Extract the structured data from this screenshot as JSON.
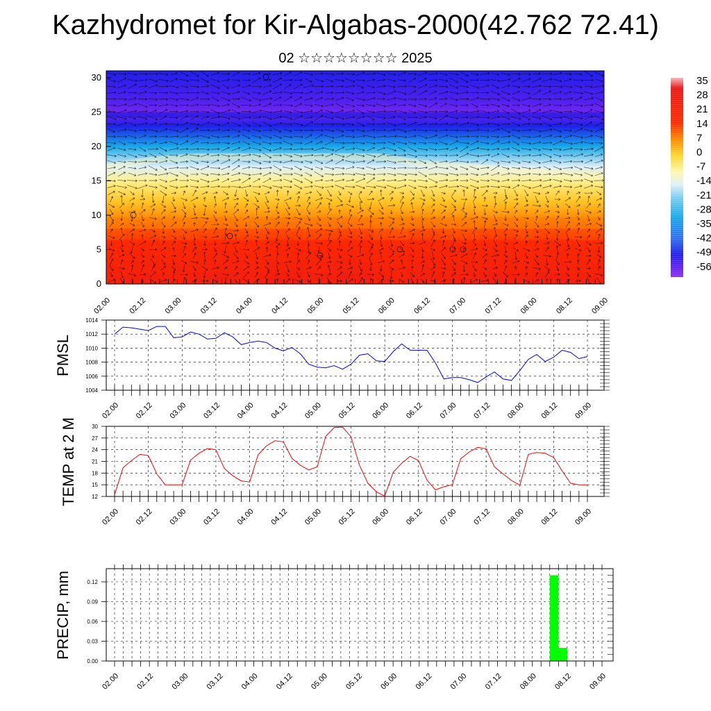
{
  "title": "Kazhydromet for Kir-Algabas-2000(42.762 72.41)",
  "subtitle": "02 ☆☆☆☆☆☆☆☆ 2025",
  "time_ticks": [
    "02.00",
    "02.12",
    "03.00",
    "03.12",
    "04.00",
    "04.12",
    "05.00",
    "05.12",
    "06.00",
    "06.12",
    "07.00",
    "07.12",
    "08.00",
    "08.12",
    "09.00"
  ],
  "chart_data": [
    {
      "type": "heatmap",
      "name": "temperature-height-section",
      "ylim": [
        0,
        31
      ],
      "y_ticks": [
        0,
        5,
        10,
        15,
        20,
        25,
        30
      ],
      "colorbar": {
        "labels": [
          "35",
          "28",
          "21",
          "14",
          "7",
          "0",
          "-7",
          "-14",
          "-21",
          "-28",
          "-35",
          "-42",
          "-49",
          "-56"
        ],
        "range": [
          -59,
          38
        ],
        "stops": [
          {
            "v": 38,
            "c": "#f5b8b8"
          },
          {
            "v": 33,
            "c": "#e81818"
          },
          {
            "v": 16,
            "c": "#ff2a00"
          },
          {
            "v": 8,
            "c": "#ff8a00"
          },
          {
            "v": 0,
            "c": "#ffd830"
          },
          {
            "v": -8,
            "c": "#fff8b0"
          },
          {
            "v": -14,
            "c": "#dff0f8"
          },
          {
            "v": -20,
            "c": "#7fd0f0"
          },
          {
            "v": -30,
            "c": "#18a8e8"
          },
          {
            "v": -40,
            "c": "#3070f0"
          },
          {
            "v": -48,
            "c": "#2020e8"
          },
          {
            "v": -54,
            "c": "#6020f0"
          },
          {
            "v": -59,
            "c": "#8a30f0"
          }
        ]
      },
      "profile": {
        "z": [
          0,
          3,
          6,
          9,
          12,
          15,
          17,
          20,
          23,
          25,
          27,
          31
        ],
        "t": [
          26,
          22,
          17,
          9,
          2,
          -6,
          -14,
          -30,
          -48,
          -56,
          -52,
          -48
        ]
      },
      "surface_temp": [
        12,
        20,
        23,
        15,
        15,
        21,
        24,
        18,
        16,
        26,
        26,
        19,
        19,
        30,
        27,
        15,
        12,
        22,
        21,
        14,
        15,
        23,
        24,
        15,
        23,
        23,
        15,
        15
      ],
      "ridge": [
        17,
        18,
        18.5,
        18.5,
        18.5,
        18.5,
        18.5,
        17.5,
        17,
        16.5,
        16,
        15.5
      ]
    },
    {
      "type": "line",
      "name": "PMSL",
      "ylabel": "PMSL",
      "ylim": [
        1004,
        1014
      ],
      "y_ticks": [
        1004,
        1006,
        1008,
        1010,
        1012,
        1014
      ],
      "color": "#0000ff",
      "x": [
        0,
        3,
        6,
        9,
        12,
        15,
        18,
        21,
        24,
        27,
        30,
        33,
        36,
        39,
        42,
        45,
        48,
        51,
        54,
        57,
        60,
        63,
        66,
        69,
        72,
        75,
        78,
        81,
        84,
        87,
        90,
        93,
        96,
        99,
        102,
        105,
        108,
        111,
        114,
        117,
        120,
        123,
        126,
        129,
        132,
        135,
        138,
        141,
        144,
        147,
        150,
        153,
        156,
        159,
        162,
        165,
        168
      ],
      "values": [
        1012.0,
        1013.0,
        1012.9,
        1012.7,
        1012.5,
        1013.1,
        1013.1,
        1011.5,
        1011.6,
        1012.3,
        1012.0,
        1011.3,
        1011.4,
        1012.2,
        1011.6,
        1010.5,
        1010.8,
        1011.0,
        1010.8,
        1010.0,
        1009.6,
        1010.1,
        1009.2,
        1007.7,
        1007.3,
        1007.2,
        1007.5,
        1007.0,
        1007.7,
        1009.0,
        1009.2,
        1008.2,
        1008.1,
        1009.5,
        1010.6,
        1009.7,
        1009.7,
        1009.7,
        1007.9,
        1005.6,
        1005.8,
        1005.8,
        1005.5,
        1005.1,
        1005.9,
        1006.6,
        1005.6,
        1005.4,
        1006.8,
        1008.4,
        1009.1,
        1008.1,
        1008.7,
        1009.7,
        1009.4,
        1008.5,
        1008.8
      ]
    },
    {
      "type": "line",
      "name": "TEMP at 2 M",
      "ylabel": "TEMP at 2 M",
      "ylim": [
        12,
        30
      ],
      "y_ticks": [
        12,
        15,
        18,
        21,
        24,
        27,
        30
      ],
      "color": "#ff0000",
      "x": [
        0,
        3,
        6,
        9,
        12,
        15,
        18,
        21,
        24,
        27,
        30,
        33,
        36,
        39,
        42,
        45,
        48,
        51,
        54,
        57,
        60,
        63,
        66,
        69,
        72,
        75,
        78,
        81,
        84,
        87,
        90,
        93,
        96,
        99,
        102,
        105,
        108,
        111,
        114,
        117,
        120,
        123,
        126,
        129,
        132,
        135,
        138,
        141,
        144,
        147,
        150,
        153,
        156,
        159,
        162,
        165,
        168
      ],
      "values": [
        12.4,
        19.4,
        21.2,
        22.8,
        22.5,
        17.8,
        15.0,
        15.0,
        15.0,
        21.3,
        23.1,
        24.3,
        24.0,
        19.2,
        17.3,
        16.0,
        15.7,
        22.7,
        25.0,
        26.3,
        26.0,
        21.8,
        20.0,
        18.8,
        19.6,
        27.4,
        29.7,
        29.8,
        27.3,
        20.0,
        15.4,
        13.2,
        12.1,
        18.2,
        20.5,
        22.3,
        21.2,
        16.2,
        13.7,
        14.5,
        15.0,
        21.7,
        23.4,
        24.6,
        24.2,
        19.6,
        17.8,
        16.1,
        14.9,
        22.8,
        23.3,
        23.1,
        22.0,
        18.6,
        15.4,
        15.0,
        15.0
      ]
    },
    {
      "type": "bar",
      "name": "PRECIP",
      "ylabel": "PRECIP, mm",
      "ylim": [
        0,
        0.14
      ],
      "y_ticks": [
        "0.00",
        "0.03",
        "0.06",
        "0.09",
        "0.12"
      ],
      "color": "#00ff00",
      "bars": [
        {
          "start": 150,
          "end": 153,
          "value": 0.13
        },
        {
          "start": 153,
          "end": 156,
          "value": 0.02
        }
      ]
    }
  ]
}
